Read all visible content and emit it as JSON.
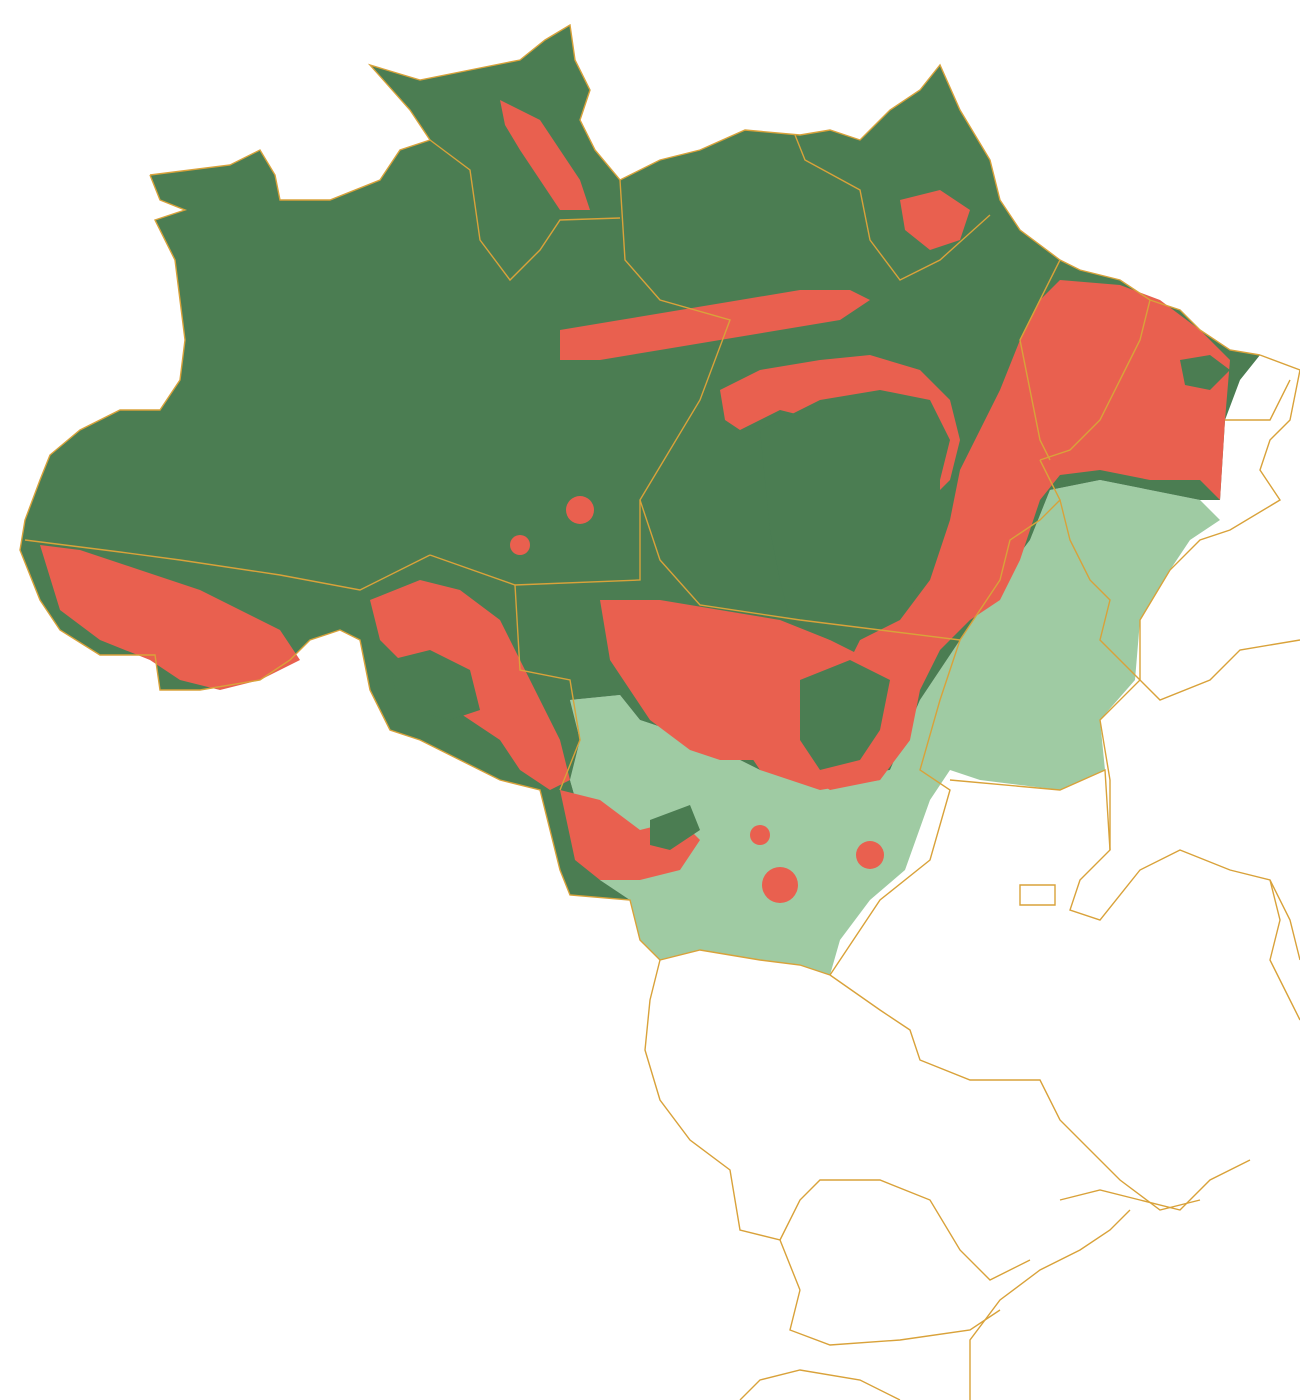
{
  "map": {
    "description_visible_text": "",
    "colors": {
      "forest": "#4b7d52",
      "deforested": "#e9604f",
      "cerrado": "#9fcba3",
      "border": "#d9a23a",
      "background": "#ffffff"
    },
    "layers": [
      "forest",
      "deforested",
      "cerrado",
      "state-borders"
    ]
  }
}
